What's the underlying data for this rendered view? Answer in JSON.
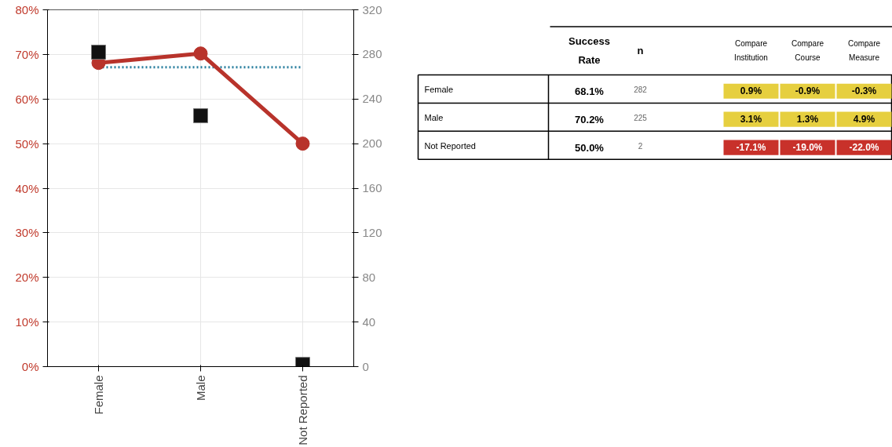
{
  "chart_data": [
    {
      "type": "line",
      "categories": [
        "Female",
        "Male",
        "Not Reported"
      ],
      "series": [
        {
          "type": "line",
          "color": "#b8332b",
          "values": [
            68.1,
            70.2,
            50.0
          ],
          "marker": "circle"
        },
        {
          "type": "scatter",
          "axis": "y2",
          "color": "#111111",
          "values": [
            282,
            225,
            2
          ],
          "marker": "square"
        }
      ],
      "ylim": [
        0,
        80
      ],
      "yticks": [
        {
          "value": 0,
          "label": "0%"
        },
        {
          "value": 10,
          "label": "10%"
        },
        {
          "value": 20,
          "label": "20%"
        },
        {
          "value": 30,
          "label": "30%"
        },
        {
          "value": 40,
          "label": "40%"
        },
        {
          "value": 50,
          "label": "50%"
        },
        {
          "value": 60,
          "label": "60%"
        },
        {
          "value": 70,
          "label": "70%"
        },
        {
          "value": 80,
          "label": "80%"
        }
      ],
      "y2lim": [
        0,
        320
      ],
      "y2ticks": [
        0,
        40,
        80,
        120,
        160,
        200,
        240,
        280,
        320
      ],
      "ref_lines": [
        {
          "axis": "y",
          "value": 67.1,
          "color": "#2a7f9e",
          "line_style": "dotted"
        }
      ],
      "grid": true
    },
    {
      "type": "other",
      "annotations": [
        "Success Rate",
        "n",
        "Compare Institution",
        "Compare Course",
        "Compare Measure",
        "Female",
        "68.1%",
        "282",
        "0.9%",
        "-0.9%",
        "-0.3%",
        "Male",
        "70.2%",
        "225",
        "3.1%",
        "1.3%",
        "4.9%",
        "Not Reported",
        "50.0%",
        "2",
        "-17.1%",
        "-19.0%",
        "-22.0%"
      ],
      "colors": [
        "#e6cf3f",
        "#e6cf3f",
        "#e6cf3f",
        "#e6cf3f",
        "#e6cf3f",
        "#e6cf3f",
        "#c8312a",
        "#c8312a",
        "#c8312a"
      ]
    }
  ]
}
